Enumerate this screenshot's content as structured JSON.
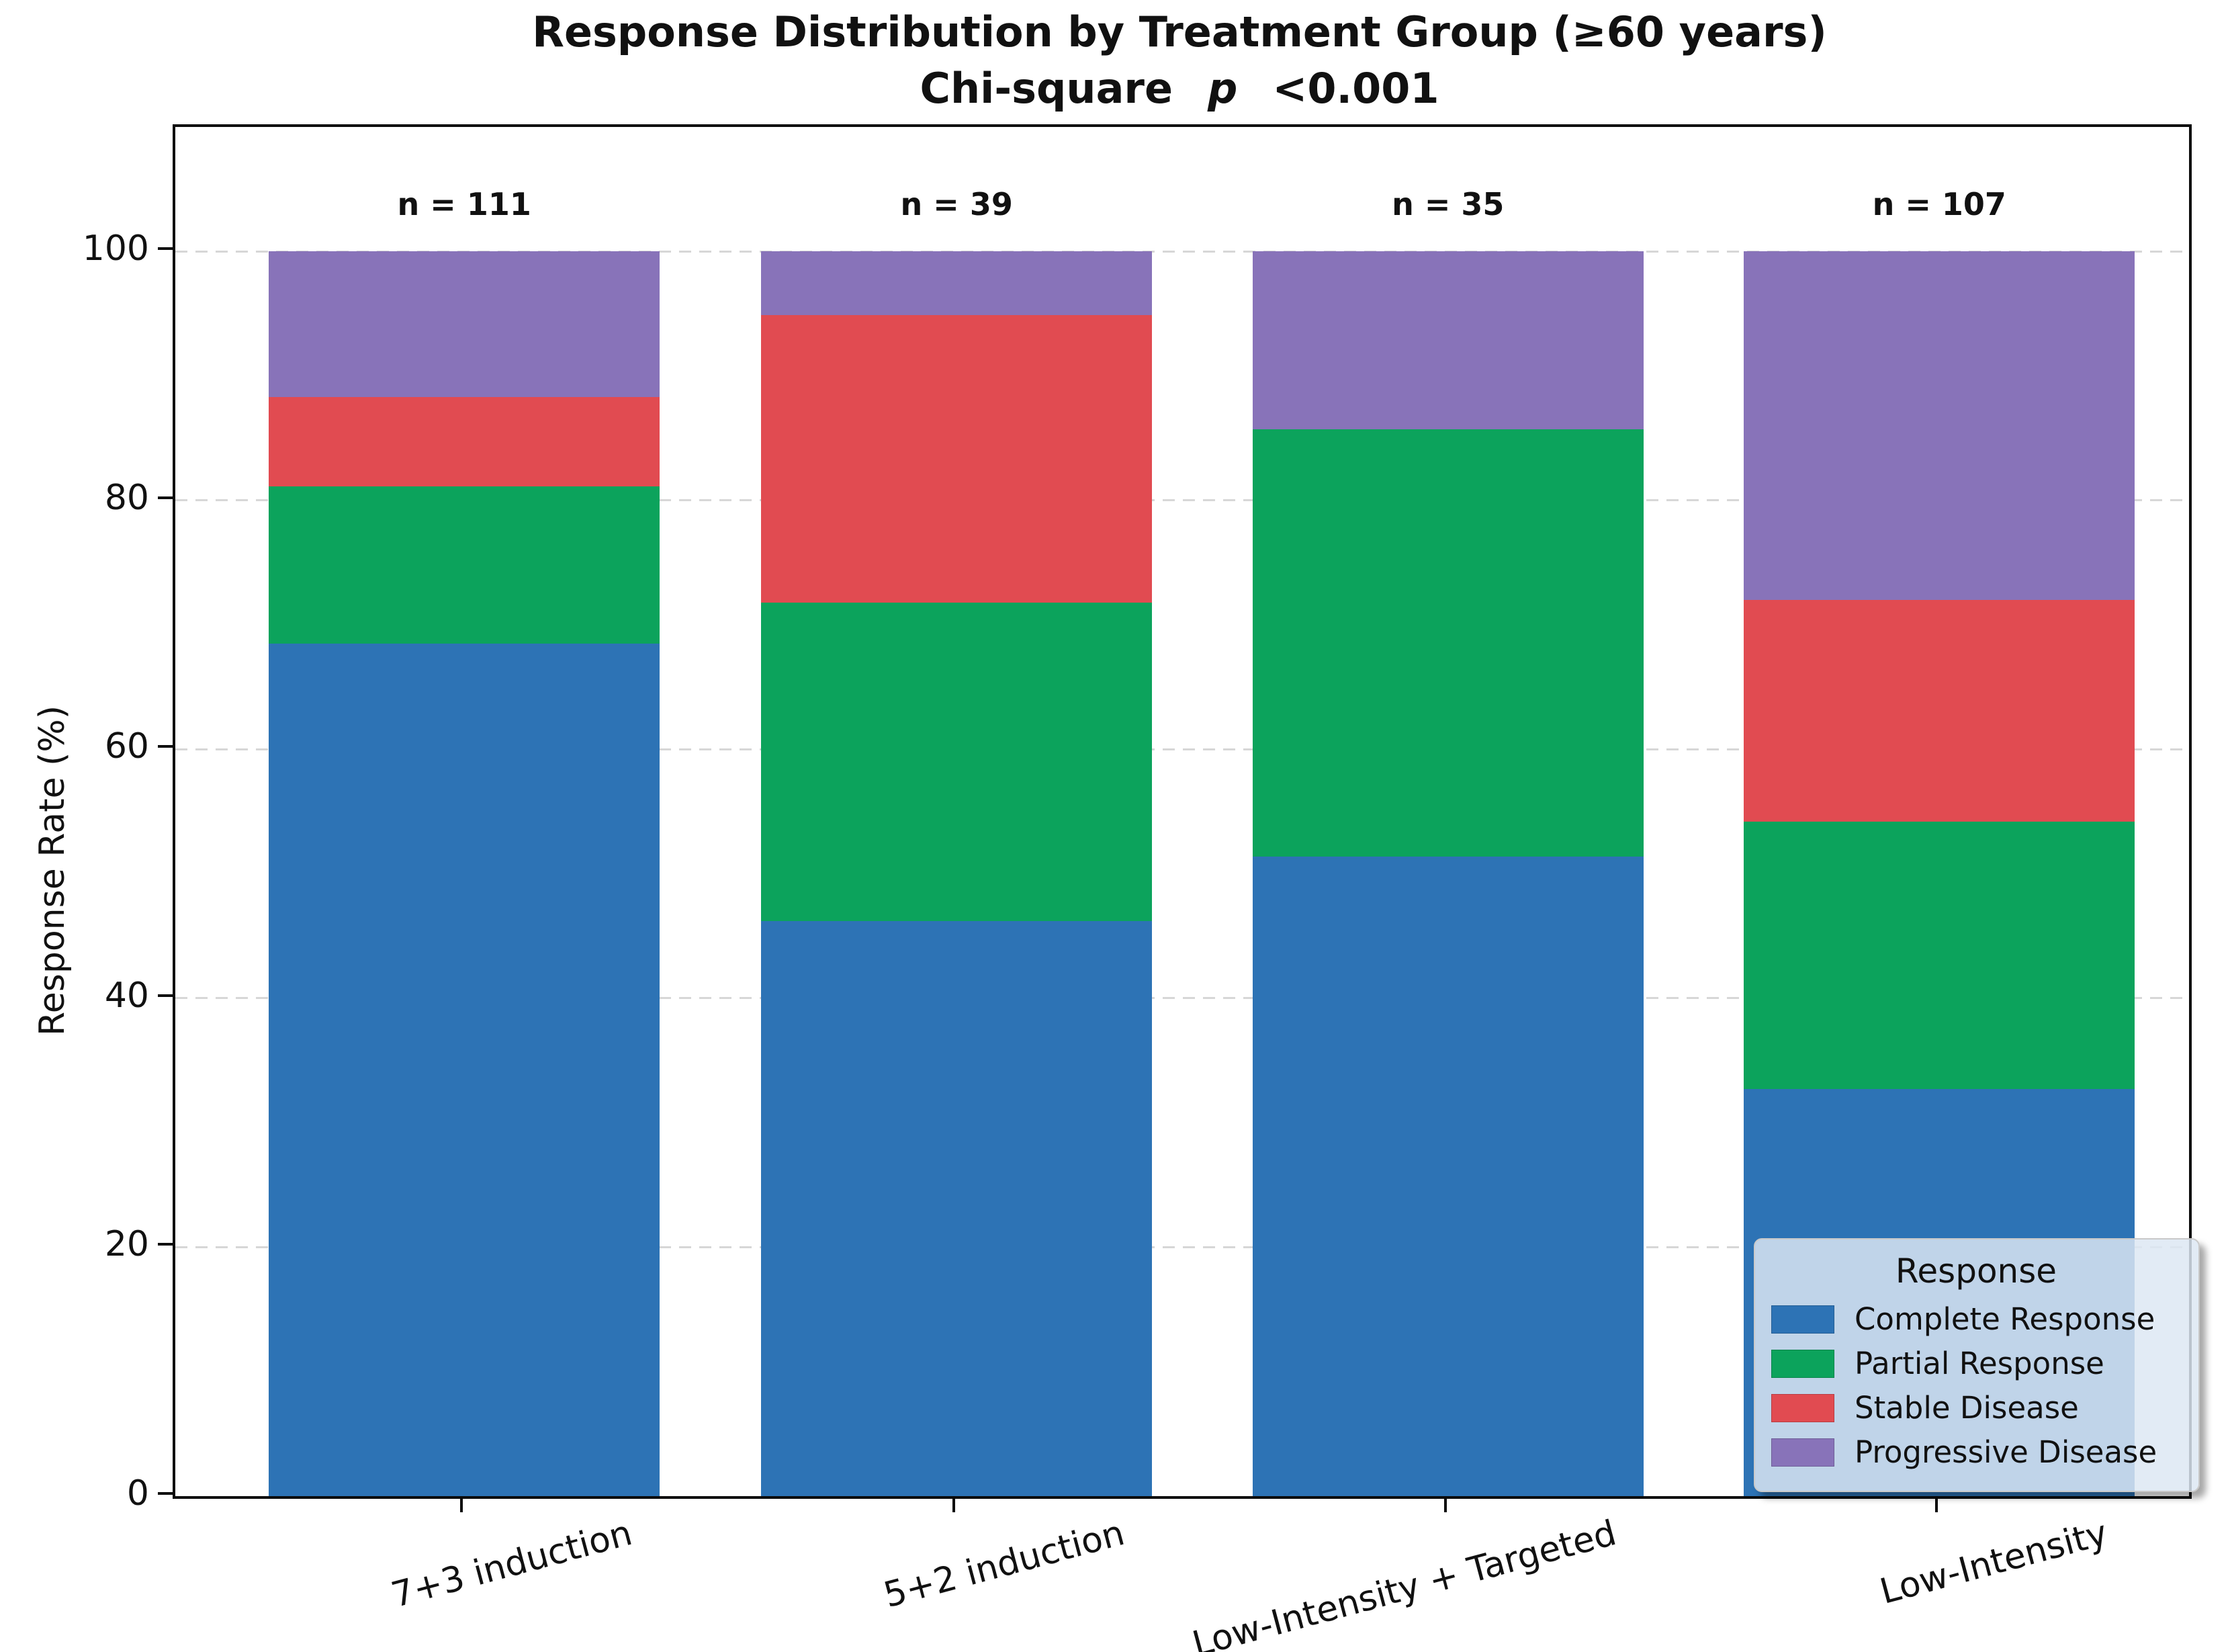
{
  "title": {
    "line1": "Response Distribution by Treatment Group (≥60 years)",
    "line2_prefix": "Chi-square",
    "line2_stat": "p",
    "line2_value": "<0.001"
  },
  "chart_data": {
    "type": "bar",
    "stacked": true,
    "title": "Response Distribution by Treatment Group (≥60 years)",
    "subtitle": "Chi-square p <0.001",
    "xlabel": "",
    "ylabel": "Response Rate (%)",
    "ylim": [
      0,
      110
    ],
    "yticks": [
      0,
      20,
      40,
      60,
      80,
      100
    ],
    "grid": "horizontal-dashed",
    "categories": [
      "7+3 induction",
      "5+2 induction",
      "Low-Intensity + Targeted",
      "Low-Intensity"
    ],
    "n_labels": [
      "n = 111",
      "n = 39",
      "n = 35",
      "n = 107"
    ],
    "n_values": [
      111,
      39,
      35,
      107
    ],
    "series": [
      {
        "name": "Complete Response",
        "color": "#2d73b5",
        "values": [
          68.5,
          46.2,
          51.4,
          32.7
        ]
      },
      {
        "name": "Partial Response",
        "color": "#0ca35c",
        "values": [
          12.6,
          25.6,
          34.3,
          21.5
        ]
      },
      {
        "name": "Stable Disease",
        "color": "#e14b51",
        "values": [
          7.2,
          23.1,
          0.0,
          17.8
        ]
      },
      {
        "name": "Progressive Disease",
        "color": "#8873b9",
        "values": [
          11.7,
          5.1,
          14.3,
          28.0
        ]
      }
    ],
    "legend": {
      "title": "Response",
      "position": "lower right"
    }
  },
  "colors": {
    "axis": "#0a0a0a",
    "gridline": "#d7d7d7",
    "legend_bg": "#dde7f3",
    "text": "#111111"
  }
}
